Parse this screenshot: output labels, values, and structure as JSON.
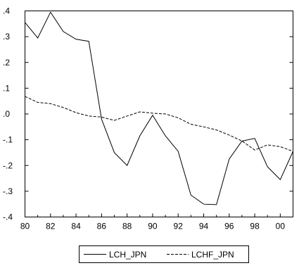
{
  "chart_data": {
    "type": "line",
    "title": "",
    "xlabel": "",
    "ylabel": "",
    "x": [
      1980,
      1981,
      1982,
      1983,
      1984,
      1985,
      1986,
      1987,
      1988,
      1989,
      1990,
      1991,
      1992,
      1993,
      1994,
      1995,
      1996,
      1997,
      1998,
      1999,
      2000,
      2001
    ],
    "xlim": [
      1980,
      2001
    ],
    "ylim": [
      -0.4,
      0.4
    ],
    "x_tick_values": [
      1980,
      1982,
      1984,
      1986,
      1988,
      1990,
      1992,
      1994,
      1996,
      1998,
      2000
    ],
    "x_tick_labels": [
      "80",
      "82",
      "84",
      "86",
      "88",
      "90",
      "92",
      "94",
      "96",
      "98",
      "00"
    ],
    "y_tick_values": [
      0.4,
      0.3,
      0.2,
      0.1,
      0.0,
      -0.1,
      -0.2,
      -0.3,
      -0.4
    ],
    "y_tick_labels": [
      ".4",
      ".3",
      ".2",
      ".1",
      ".0",
      "-.1",
      "-.2",
      "-.3",
      "-.4"
    ],
    "grid": false,
    "reference_line_y": 0.4,
    "legend_position": "bottom-center",
    "series": [
      {
        "name": "LCH_JPN",
        "style": "solid",
        "color": "#000000",
        "values": [
          0.355,
          0.295,
          0.395,
          0.32,
          0.29,
          0.282,
          -0.02,
          -0.15,
          -0.2,
          -0.085,
          -0.005,
          -0.085,
          -0.145,
          -0.315,
          -0.35,
          -0.352,
          -0.175,
          -0.105,
          -0.095,
          -0.205,
          -0.255,
          -0.145
        ]
      },
      {
        "name": "LCHF_JPN",
        "style": "dashed",
        "color": "#000000",
        "values": [
          0.068,
          0.045,
          0.04,
          0.025,
          0.005,
          -0.008,
          -0.012,
          -0.025,
          -0.008,
          0.008,
          0.003,
          0.0,
          -0.015,
          -0.04,
          -0.05,
          -0.062,
          -0.082,
          -0.105,
          -0.14,
          -0.12,
          -0.127,
          -0.145
        ]
      }
    ]
  }
}
